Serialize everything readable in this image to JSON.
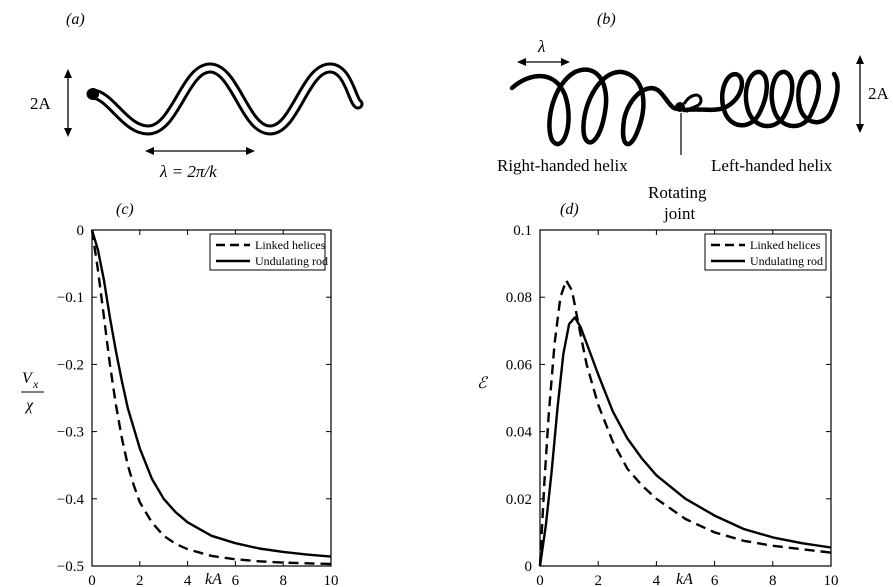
{
  "panels": {
    "a": {
      "label": "(a)",
      "amplitude_label": "2A",
      "wavelength_label": "λ = 2π/k"
    },
    "b": {
      "label": "(b)",
      "wavelength_label": "λ",
      "amplitude_label": "2A",
      "right_helix_label": "Right-handed helix",
      "left_helix_label": "Left-handed helix",
      "joint_label_line1": "Rotating",
      "joint_label_line2": "joint"
    }
  },
  "colors": {
    "ink": "#000000",
    "background": "#ffffff"
  },
  "chart_data": [
    {
      "panel": "(c)",
      "type": "line",
      "xlabel": "kA",
      "ylabel_num": "V",
      "ylabel_sub": "x",
      "ylabel_den": "χ",
      "xlim": [
        0,
        10
      ],
      "ylim": [
        -0.5,
        0
      ],
      "xticks": [
        0,
        2,
        4,
        6,
        8,
        10
      ],
      "yticks": [
        0,
        -0.1,
        -0.2,
        -0.3,
        -0.4,
        -0.5
      ],
      "ytick_labels": [
        "0",
        "−0.1",
        "−0.2",
        "−0.3",
        "−0.4",
        "−0.5"
      ],
      "legend": "top-right",
      "series": [
        {
          "name": "Linked helices",
          "style": "dashed",
          "x": [
            0,
            0.25,
            0.5,
            0.75,
            1,
            1.25,
            1.5,
            1.75,
            2,
            2.5,
            3,
            3.5,
            4,
            5,
            6,
            7,
            8,
            9,
            10
          ],
          "y": [
            0,
            -0.06,
            -0.13,
            -0.2,
            -0.26,
            -0.31,
            -0.35,
            -0.38,
            -0.405,
            -0.435,
            -0.455,
            -0.467,
            -0.475,
            -0.485,
            -0.49,
            -0.493,
            -0.495,
            -0.496,
            -0.497
          ]
        },
        {
          "name": "Undulating rod",
          "style": "solid",
          "x": [
            0,
            0.25,
            0.5,
            0.75,
            1,
            1.25,
            1.5,
            1.75,
            2,
            2.5,
            3,
            3.5,
            4,
            5,
            6,
            7,
            8,
            9,
            10
          ],
          "y": [
            0,
            -0.03,
            -0.075,
            -0.13,
            -0.18,
            -0.225,
            -0.265,
            -0.295,
            -0.325,
            -0.37,
            -0.4,
            -0.42,
            -0.435,
            -0.455,
            -0.466,
            -0.474,
            -0.479,
            -0.483,
            -0.486
          ]
        }
      ]
    },
    {
      "panel": "(d)",
      "type": "line",
      "xlabel": "kA",
      "ylabel": "ℰ",
      "xlim": [
        0,
        10
      ],
      "ylim": [
        0,
        0.1
      ],
      "xticks": [
        0,
        2,
        4,
        6,
        8,
        10
      ],
      "yticks": [
        0,
        0.02,
        0.04,
        0.06,
        0.08,
        0.1
      ],
      "ytick_labels": [
        "0",
        "0.02",
        "0.04",
        "0.06",
        "0.08",
        "0.1"
      ],
      "legend": "top-right",
      "series": [
        {
          "name": "Linked helices",
          "style": "dashed",
          "x": [
            0,
            0.15,
            0.3,
            0.5,
            0.7,
            0.9,
            1.1,
            1.3,
            1.6,
            2,
            2.5,
            3,
            3.5,
            4,
            5,
            6,
            7,
            8,
            9,
            10
          ],
          "y": [
            0,
            0.025,
            0.045,
            0.066,
            0.08,
            0.085,
            0.082,
            0.073,
            0.06,
            0.048,
            0.037,
            0.029,
            0.024,
            0.02,
            0.014,
            0.01,
            0.0075,
            0.006,
            0.005,
            0.004
          ]
        },
        {
          "name": "Undulating rod",
          "style": "solid",
          "x": [
            0,
            0.2,
            0.4,
            0.6,
            0.8,
            1,
            1.2,
            1.4,
            1.7,
            2,
            2.5,
            3,
            3.5,
            4,
            5,
            6,
            7,
            8,
            9,
            10
          ],
          "y": [
            0,
            0.012,
            0.028,
            0.047,
            0.063,
            0.072,
            0.074,
            0.071,
            0.064,
            0.057,
            0.046,
            0.038,
            0.032,
            0.027,
            0.02,
            0.015,
            0.011,
            0.0085,
            0.0068,
            0.0055
          ]
        }
      ]
    }
  ]
}
